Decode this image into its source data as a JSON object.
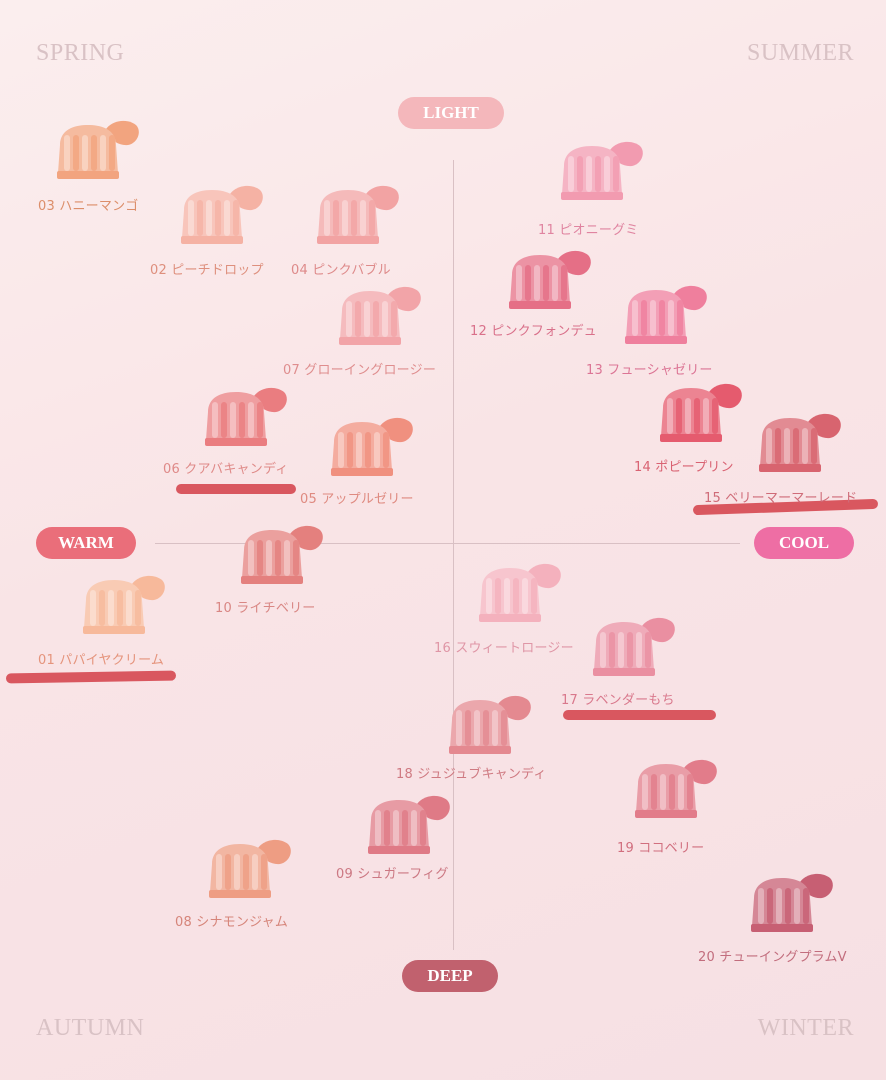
{
  "seasons": {
    "spring": "SPRING",
    "summer": "SUMMER",
    "autumn": "AUTUMN",
    "winter": "WINTER"
  },
  "axes": {
    "light": "LIGHT",
    "deep": "DEEP",
    "warm": "WARM",
    "cool": "COOL"
  },
  "products": [
    {
      "label": "03 ハニーマンゴ",
      "color": "#f2a47f",
      "text_color": "#dc8e6a"
    },
    {
      "label": "02 ピーチドロップ",
      "color": "#f5b2a4",
      "text_color": "#de8f7d"
    },
    {
      "label": "04 ピンクバブル",
      "color": "#f2a3a3",
      "text_color": "#de8a8a"
    },
    {
      "label": "07 グローイングロージー",
      "color": "#f2a4a8",
      "text_color": "#df8d8e"
    },
    {
      "label": "06 クアバキャンディ",
      "color": "#ea7d80",
      "text_color": "#df8a88"
    },
    {
      "label": "05 アップルゼリー",
      "color": "#f0907f",
      "text_color": "#df8a80"
    },
    {
      "label": "10 ライチベリー",
      "color": "#e4807e",
      "text_color": "#d98784"
    },
    {
      "label": "01 パパイヤクリーム",
      "color": "#f7b99b",
      "text_color": "#e5947c"
    },
    {
      "label": "11 ピオニーグミ",
      "color": "#f29bb0",
      "text_color": "#e084a0"
    },
    {
      "label": "12 ピンクフォンデュ",
      "color": "#e56f86",
      "text_color": "#d9708a"
    },
    {
      "label": "13 フューシャゼリー",
      "color": "#ef7f9d",
      "text_color": "#dc7595"
    },
    {
      "label": "14 ポピープリン",
      "color": "#e55b6e",
      "text_color": "#d96272"
    },
    {
      "label": "15 ベリーマーマーレード",
      "color": "#d8646f",
      "text_color": "#cf6b78"
    },
    {
      "label": "16 スウィートロージー",
      "color": "#f4b1bd",
      "text_color": "#df96a6"
    },
    {
      "label": "17 ラベンダーもち",
      "color": "#ea8fa1",
      "text_color": "#d9788c"
    },
    {
      "label": "18 ジュジュブキャンディ",
      "color": "#e48990",
      "text_color": "#cf7a82"
    },
    {
      "label": "19 ココベリー",
      "color": "#e27c8a",
      "text_color": "#d16f7e"
    },
    {
      "label": "09 シュガーフィグ",
      "color": "#df7a86",
      "text_color": "#cc7883"
    },
    {
      "label": "08 シナモンジャム",
      "color": "#ee9d83",
      "text_color": "#d6857a"
    },
    {
      "label": "20 チューイングプラムV",
      "color": "#c75f73",
      "text_color": "#c26d7d"
    }
  ],
  "colors": {
    "light_pill": "#f4b7bb",
    "deep_pill": "#c1616e",
    "warm_pill": "#ea6e7a",
    "cool_pill": "#ee6ea4",
    "highlight": "#d9575f"
  }
}
